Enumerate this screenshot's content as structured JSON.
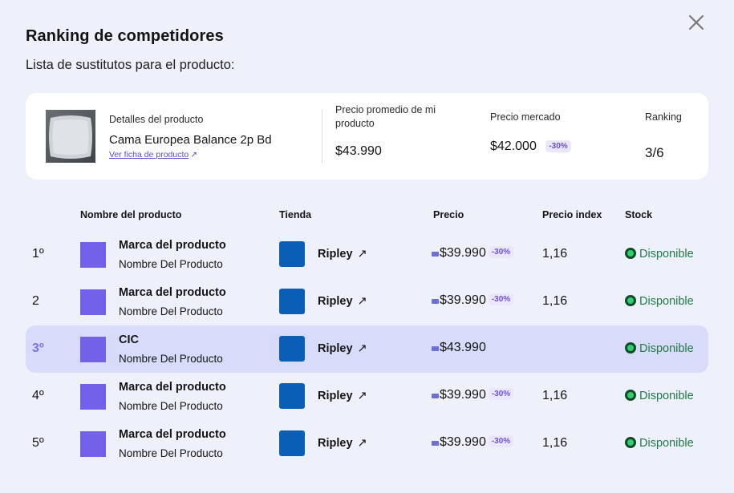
{
  "modal": {
    "title": "Ranking de competidores",
    "subtitle": "Lista de sustitutos para el producto:",
    "close_icon": "close-icon"
  },
  "summary": {
    "details_label": "Detalles del producto",
    "product_name": "Cama Europea Balance 2p Bd",
    "link_label": "Ver ficha de producto",
    "link_icon": "external-link-icon",
    "avg_price_label": "Precio promedio de mi producto",
    "avg_price_value": "$43.990",
    "market_price_label": "Precio mercado",
    "market_price_value": "$42.000",
    "market_price_badge": "-30%",
    "ranking_label": "Ranking",
    "ranking_value": "3/6"
  },
  "table": {
    "headers": {
      "product": "Nombre del producto",
      "store": "Tienda",
      "price": "Precio",
      "price_index": "Precio index",
      "stock": "Stock"
    },
    "rows": [
      {
        "rank": "1º",
        "brand": "Marca del producto",
        "name": "Nombre Del Producto",
        "store": "Ripley",
        "price": "$39.990",
        "badge": "-30%",
        "index": "1,16",
        "stock": "Disponible",
        "highlight": false
      },
      {
        "rank": "2",
        "brand": "Marca del producto",
        "name": "Nombre Del Producto",
        "store": "Ripley",
        "price": "$39.990",
        "badge": "-30%",
        "index": "1,16",
        "stock": "Disponible",
        "highlight": false
      },
      {
        "rank": "3º",
        "brand": "CIC",
        "name": "Nombre Del Producto",
        "store": "Ripley",
        "price": "$43.990",
        "badge": "",
        "index": "",
        "stock": "Disponible",
        "highlight": true
      },
      {
        "rank": "4º",
        "brand": "Marca del producto",
        "name": "Nombre Del Producto",
        "store": "Ripley",
        "price": "$39.990",
        "badge": "-30%",
        "index": "1,16",
        "stock": "Disponible",
        "highlight": false
      },
      {
        "rank": "5º",
        "brand": "Marca del producto",
        "name": "Nombre Del Producto",
        "store": "Ripley",
        "price": "$39.990",
        "badge": "-30%",
        "index": "1,16",
        "stock": "Disponible",
        "highlight": false
      }
    ]
  },
  "colors": {
    "accent": "#7461ea",
    "highlight_row": "#d8dcfa",
    "store_logo": "#0a5eb5",
    "stock_text": "#1f7a44",
    "badge_bg": "#ece6fd"
  }
}
